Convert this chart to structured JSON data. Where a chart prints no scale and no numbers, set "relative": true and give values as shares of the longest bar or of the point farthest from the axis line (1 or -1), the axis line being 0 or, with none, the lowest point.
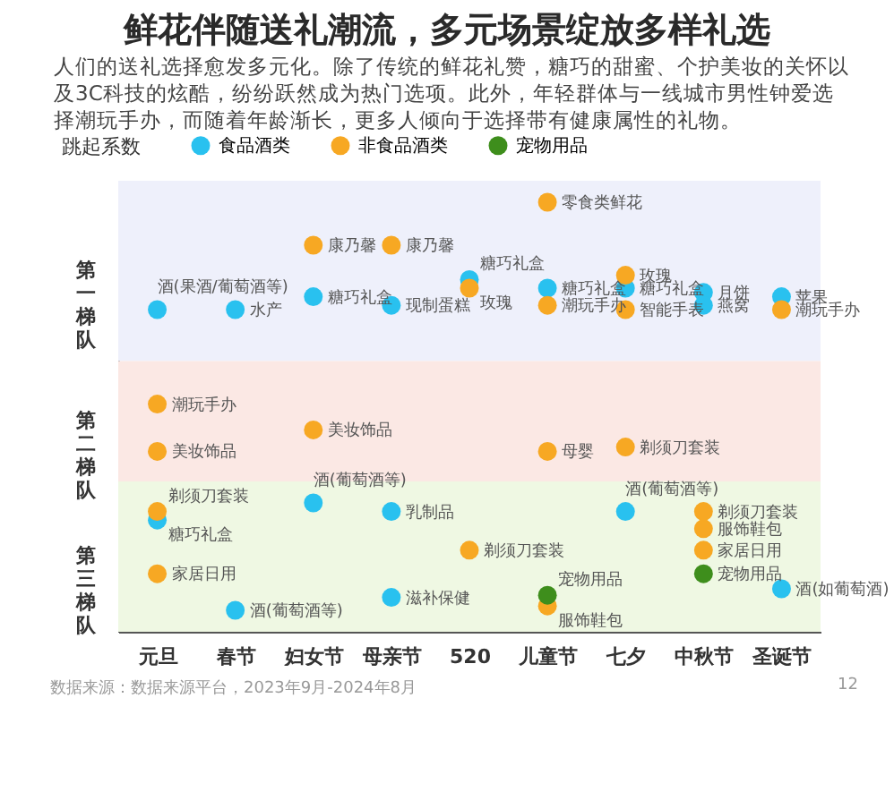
{
  "chart_data": {
    "type": "scatter",
    "title": "鲜花伴随送礼潮流，多元场景绽放多样礼选",
    "subtitle": "人们的送礼选择愈发多元化。除了传统的鲜花礼赞，糖巧的甜蜜、个护美妆的关怀以及3C科技的炫酷，纷纷跃然成为热门选项。此外，年轻群体与一线城市男性钟爱选择潮玩手办，而随着年龄渐长，更多人倾向于选择带有健康属性的礼物。",
    "ylabel": "跳起系数",
    "relative": true,
    "legend": "top",
    "marker": "circle",
    "categories": [
      "元旦",
      "春节",
      "妇女节",
      "母亲节",
      "520",
      "儿童节",
      "七夕",
      "中秋节",
      "圣诞节"
    ],
    "series": [
      {
        "name": "食品酒类",
        "color": "#29c1ef",
        "x": [
          "520",
          "元旦",
          "春节",
          "妇女节",
          "母亲节",
          "儿童节",
          "七夕",
          "中秋节",
          "中秋节",
          "圣诞节",
          "元旦",
          "妇女节",
          "母亲节",
          "七夕",
          "春节",
          "母亲节",
          "圣诞节"
        ],
        "values": [
          0.82,
          0.75,
          0.75,
          0.78,
          0.76,
          0.8,
          0.8,
          0.79,
          0.76,
          0.78,
          0.26,
          0.3,
          0.28,
          0.28,
          0.05,
          0.08,
          0.1
        ]
      },
      {
        "name": "非食品酒类",
        "color": "#f7a823",
        "x": [
          "妇女节",
          "母亲节",
          "520",
          "儿童节",
          "儿童节",
          "七夕",
          "七夕",
          "圣诞节",
          "元旦",
          "元旦",
          "妇女节",
          "儿童节",
          "七夕",
          "元旦",
          "元旦",
          "520",
          "中秋节",
          "中秋节",
          "中秋节",
          "儿童节"
        ],
        "values": [
          0.9,
          0.9,
          0.8,
          1,
          0.76,
          0.83,
          0.75,
          0.75,
          0.53,
          0.42,
          0.47,
          0.42,
          0.43,
          0.28,
          0.135,
          0.19,
          0.28,
          0.24,
          0.19,
          0.06
        ]
      },
      {
        "name": "宠物用品",
        "color": "#3e8e1c",
        "x": [
          "中秋节",
          "儿童节"
        ],
        "values": [
          0.135,
          0.085
        ]
      }
    ],
    "bands": [
      {
        "axis": "y",
        "from": 0.63,
        "to": 1.05,
        "label": "第一梯队",
        "color": "#eef0fb"
      },
      {
        "axis": "y",
        "from": 0.35,
        "to": 0.63,
        "label": "第二梯队",
        "color": "#fbe8e4"
      },
      {
        "axis": "y",
        "from": 0,
        "to": 0.35,
        "label": "第三梯队",
        "color": "#eff8e3"
      }
    ],
    "annotations": [
      {
        "text": "糖巧礼盒",
        "x": "520",
        "y": 0.82
      },
      {
        "text": "酒(果酒/葡萄酒等)",
        "x": "元旦",
        "y": 0.75
      },
      {
        "text": "水产",
        "x": "春节",
        "y": 0.75
      },
      {
        "text": "糖巧礼盒",
        "x": "妇女节",
        "y": 0.78
      },
      {
        "text": "现制蛋糕",
        "x": "母亲节",
        "y": 0.76
      },
      {
        "text": "糖巧礼盒",
        "x": "儿童节",
        "y": 0.8
      },
      {
        "text": "糖巧礼盒",
        "x": "七夕",
        "y": 0.8
      },
      {
        "text": "月饼",
        "x": "中秋节",
        "y": 0.79
      },
      {
        "text": "燕窝",
        "x": "中秋节",
        "y": 0.76
      },
      {
        "text": "苹果",
        "x": "圣诞节",
        "y": 0.78
      },
      {
        "text": "糖巧礼盒",
        "x": "元旦",
        "y": 0.26
      },
      {
        "text": "酒(葡萄酒等)",
        "x": "妇女节",
        "y": 0.3
      },
      {
        "text": "乳制品",
        "x": "母亲节",
        "y": 0.28
      },
      {
        "text": "酒(葡萄酒等)",
        "x": "七夕",
        "y": 0.28
      },
      {
        "text": "酒(葡萄酒等)",
        "x": "春节",
        "y": 0.05
      },
      {
        "text": "滋补保健",
        "x": "母亲节",
        "y": 0.08
      },
      {
        "text": "酒(如葡萄酒)",
        "x": "圣诞节",
        "y": 0.1
      },
      {
        "text": "康乃馨",
        "x": "妇女节",
        "y": 0.9
      },
      {
        "text": "康乃馨",
        "x": "母亲节",
        "y": 0.9
      },
      {
        "text": "玫瑰",
        "x": "520",
        "y": 0.8
      },
      {
        "text": "零食类鲜花",
        "x": "儿童节",
        "y": 1
      },
      {
        "text": "潮玩手办",
        "x": "儿童节",
        "y": 0.76
      },
      {
        "text": "玫瑰",
        "x": "七夕",
        "y": 0.83
      },
      {
        "text": "智能手表",
        "x": "七夕",
        "y": 0.75
      },
      {
        "text": "潮玩手办",
        "x": "圣诞节",
        "y": 0.75
      },
      {
        "text": "潮玩手办",
        "x": "元旦",
        "y": 0.53
      },
      {
        "text": "美妆饰品",
        "x": "元旦",
        "y": 0.42
      },
      {
        "text": "美妆饰品",
        "x": "妇女节",
        "y": 0.47
      },
      {
        "text": "母婴",
        "x": "儿童节",
        "y": 0.42
      },
      {
        "text": "剃须刀套装",
        "x": "七夕",
        "y": 0.43
      },
      {
        "text": "剃须刀套装",
        "x": "元旦",
        "y": 0.28
      },
      {
        "text": "家居日用",
        "x": "元旦",
        "y": 0.135
      },
      {
        "text": "剃须刀套装",
        "x": "520",
        "y": 0.19
      },
      {
        "text": "剃须刀套装",
        "x": "中秋节",
        "y": 0.28
      },
      {
        "text": "服饰鞋包",
        "x": "中秋节",
        "y": 0.24
      },
      {
        "text": "家居日用",
        "x": "中秋节",
        "y": 0.19
      },
      {
        "text": "服饰鞋包",
        "x": "儿童节",
        "y": 0.06
      },
      {
        "text": "宠物用品",
        "x": "中秋节",
        "y": 0.135
      },
      {
        "text": "宠物用品",
        "x": "儿童节",
        "y": 0.085
      },
      "数据来源：数据来源平台，2023年9月-2024年8月",
      "12"
    ]
  }
}
